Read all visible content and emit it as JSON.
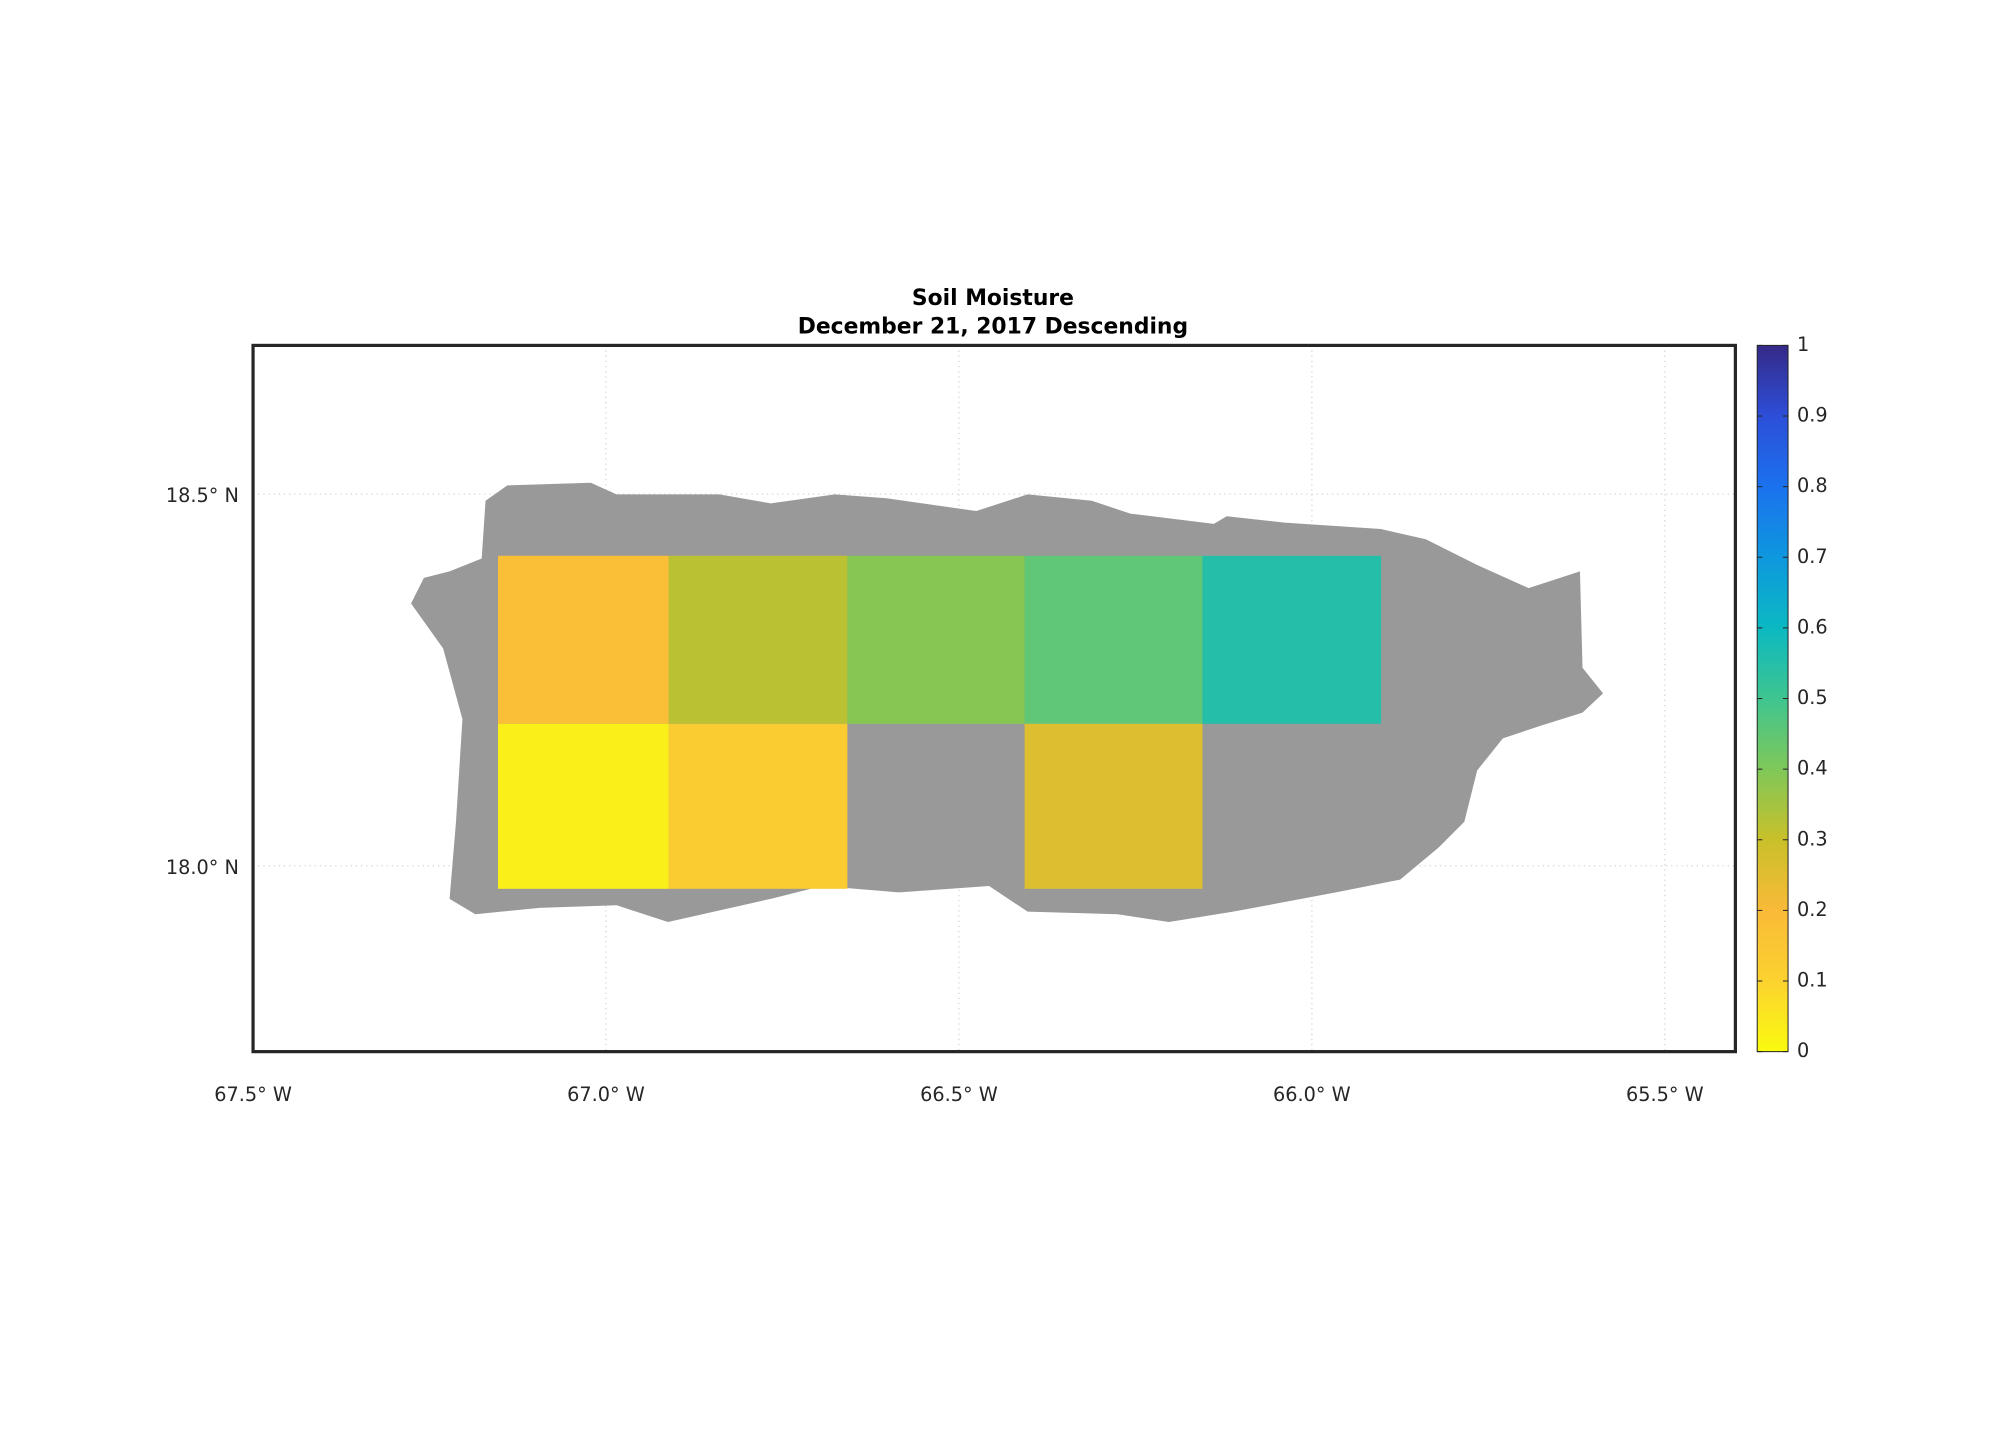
{
  "chart_data": {
    "type": "gridmap",
    "title": "Soil Moisture",
    "subtitle": "December 21, 2017 Descending",
    "xlim": [
      -67.5,
      -65.4
    ],
    "ylim": [
      17.75,
      18.7
    ],
    "xticks": [
      {
        "value": -67.5,
        "label": "67.5° W"
      },
      {
        "value": -67.0,
        "label": "67.0° W"
      },
      {
        "value": -66.5,
        "label": "66.5° W"
      },
      {
        "value": -66.0,
        "label": "66.0° W"
      },
      {
        "value": -65.5,
        "label": "65.5° W"
      }
    ],
    "yticks": [
      {
        "value": 18.0,
        "label": "18.0° N"
      },
      {
        "value": 18.5,
        "label": "18.5° N"
      }
    ],
    "grid": true,
    "land_color": "#999999",
    "clim": [
      0,
      1
    ],
    "cticks": [
      0,
      0.1,
      0.2,
      0.3,
      0.4,
      0.5,
      0.6,
      0.7,
      0.8,
      0.9,
      1
    ],
    "colormap": [
      "#f9fb0e",
      "#fcd22f",
      "#f9ba38",
      "#c9c02a",
      "#7fc859",
      "#3fc590",
      "#0bb9c2",
      "#0e97de",
      "#1b72ee",
      "#2d4ed8",
      "#352a87"
    ],
    "cells": [
      {
        "lon": [
          -67.153,
          -66.911
        ],
        "lat": [
          18.191,
          18.417
        ],
        "value": 0.18
      },
      {
        "lon": [
          -66.911,
          -66.658
        ],
        "lat": [
          18.191,
          18.417
        ],
        "value": 0.32
      },
      {
        "lon": [
          -66.658,
          -66.407
        ],
        "lat": [
          18.191,
          18.417
        ],
        "value": 0.39
      },
      {
        "lon": [
          -66.407,
          -66.155
        ],
        "lat": [
          18.191,
          18.417
        ],
        "value": 0.45
      },
      {
        "lon": [
          -66.155,
          -65.902
        ],
        "lat": [
          18.191,
          18.417
        ],
        "value": 0.55
      },
      {
        "lon": [
          -67.153,
          -66.911
        ],
        "lat": [
          17.969,
          18.191
        ],
        "value": 0.03
      },
      {
        "lon": [
          -66.911,
          -66.658
        ],
        "lat": [
          17.969,
          18.191
        ],
        "value": 0.13
      },
      {
        "lon": [
          -66.407,
          -66.155
        ],
        "lat": [
          17.969,
          18.191
        ],
        "value": 0.26
      }
    ]
  }
}
